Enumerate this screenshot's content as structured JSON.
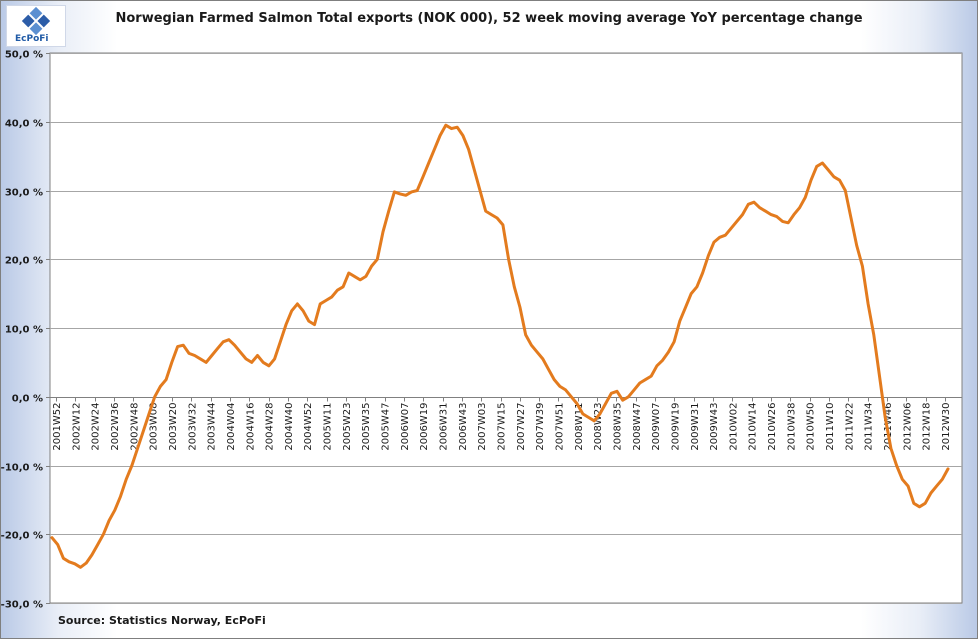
{
  "logo": {
    "text": "EcPoFi"
  },
  "source_note": "Source: Statistics Norway, EcPoFi",
  "colors": {
    "series": "#e37b1e",
    "grid": "#a6a6a6",
    "axis": "#808080"
  },
  "chart_data": {
    "type": "line",
    "title": "Norwegian Farmed Salmon Total exports (NOK 000), 52 week moving average YoY percentage change",
    "xlabel": "",
    "ylabel": "",
    "ylim": [
      -30,
      50
    ],
    "y_ticks": [
      50,
      40,
      30,
      20,
      10,
      0,
      -10,
      -20,
      -30
    ],
    "y_tick_labels": [
      "50,0 %",
      "40,0 %",
      "30,0 %",
      "20,0 %",
      "10,0 %",
      "0,0 %",
      "-10,0 %",
      "-20,0 %",
      "-30,0 %"
    ],
    "grid": true,
    "legend": "none",
    "x_tick_labels": [
      "2001W52",
      "2002W12",
      "2002W24",
      "2002W36",
      "2002W48",
      "2003W08",
      "2003W20",
      "2003W32",
      "2003W44",
      "2004W04",
      "2004W16",
      "2004W28",
      "2004W40",
      "2004W52",
      "2005W11",
      "2005W23",
      "2005W35",
      "2005W47",
      "2006W07",
      "2006W19",
      "2006W31",
      "2006W43",
      "2007W03",
      "2007W15",
      "2007W27",
      "2007W39",
      "2007W51",
      "2008W11",
      "2008W23",
      "2008W35",
      "2008W47",
      "2009W07",
      "2009W19",
      "2009W31",
      "2009W43",
      "2010W02",
      "2010W14",
      "2010W26",
      "2010W38",
      "2010W50",
      "2011W10",
      "2011W22",
      "2011W34",
      "2011W46",
      "2012W06",
      "2012W18",
      "2012W30"
    ],
    "series": [
      {
        "values": [
          -20.5,
          -21.5,
          -23.5,
          -24,
          -24.3,
          -24.8,
          -24.2,
          -23,
          -21.5,
          -20,
          -18,
          -16.5,
          -14.5,
          -12,
          -10,
          -7.5,
          -5,
          -2.5,
          0,
          1.5,
          2.5,
          5,
          7.3,
          7.5,
          6.3,
          6,
          5.5,
          5,
          6,
          7,
          8,
          8.3,
          7.5,
          6.5,
          5.5,
          5,
          6,
          5,
          4.5,
          5.5,
          8,
          10.5,
          12.5,
          13.5,
          12.5,
          11,
          10.5,
          13.5,
          14,
          14.5,
          15.5,
          16,
          18,
          17.5,
          17,
          17.5,
          19,
          20,
          24,
          27,
          29.8,
          29.5,
          29.3,
          29.8,
          30,
          32,
          34,
          36,
          38,
          39.5,
          39,
          39.2,
          38,
          36,
          33,
          30,
          27,
          26.5,
          26,
          25,
          20,
          16,
          13,
          9,
          7.5,
          6.5,
          5.5,
          4,
          2.5,
          1.5,
          1,
          0,
          -1,
          -2.5,
          -3,
          -3.5,
          -2.5,
          -1,
          0.5,
          0.8,
          -0.5,
          0,
          1,
          2,
          2.5,
          3,
          4.5,
          5.3,
          6.5,
          8,
          11,
          13,
          15,
          16,
          18,
          20.5,
          22.5,
          23.2,
          23.5,
          24.5,
          25.5,
          26.5,
          28,
          28.3,
          27.5,
          27,
          26.5,
          26.2,
          25.5,
          25.3,
          26.5,
          27.5,
          29,
          31.5,
          33.5,
          34,
          33,
          32,
          31.5,
          30,
          26,
          22,
          19,
          13.5,
          9,
          3,
          -3,
          -7.5,
          -10,
          -12,
          -13,
          -15.5,
          -16,
          -15.5,
          -14,
          -13,
          -12,
          -10.5
        ]
      }
    ]
  }
}
